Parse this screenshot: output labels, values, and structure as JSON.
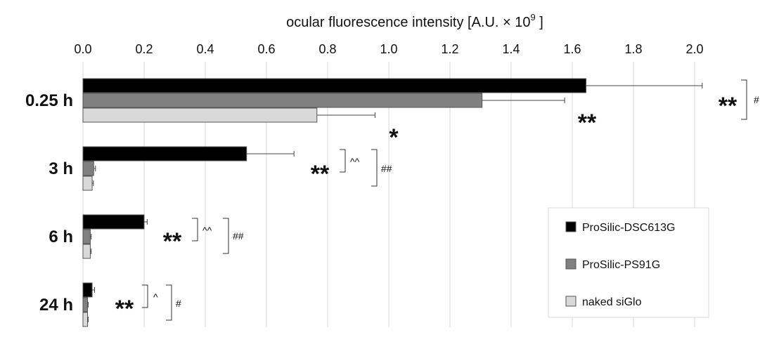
{
  "chart_data": {
    "type": "bar",
    "orientation": "horizontal",
    "xlabel": "ocular fluorescence intensity [A.U. × 10",
    "xlabel_sup": "9",
    "xlabel_end": " ]",
    "xlim": [
      0,
      2.0
    ],
    "xticks": [
      "0.0",
      "0.2",
      "0.4",
      "0.6",
      "0.8",
      "1.0",
      "1.2",
      "1.4",
      "1.6",
      "1.8",
      "2.0"
    ],
    "grid": true,
    "legend_position": "bottom-right",
    "categories": [
      "0.25 h",
      "3 h",
      "6 h",
      "24 h"
    ],
    "series": [
      {
        "name": "ProSilic-DSC613G",
        "color": "#000000",
        "values": [
          1.645,
          0.535,
          0.2,
          0.03
        ],
        "errors": [
          0.38,
          0.155,
          0.01,
          0.008
        ]
      },
      {
        "name": "ProSilic-PS91G",
        "color": "#808080",
        "values": [
          1.305,
          0.035,
          0.024,
          0.015
        ],
        "errors": [
          0.27,
          0.006,
          0.003,
          0.002
        ]
      },
      {
        "name": "naked siGlo",
        "color": "#d9d9d9",
        "values": [
          0.765,
          0.03,
          0.024,
          0.015
        ],
        "errors": [
          0.19,
          0.004,
          0.003,
          0.002
        ]
      }
    ],
    "annotations": {
      "stars": [
        {
          "category": 0,
          "series": 0,
          "text": "**"
        },
        {
          "category": 0,
          "series": 1,
          "text": "**"
        },
        {
          "category": 0,
          "series": 2,
          "text": "*"
        },
        {
          "category": 1,
          "series": 0,
          "text": "**"
        },
        {
          "category": 2,
          "series": 0,
          "text": "**"
        },
        {
          "category": 3,
          "series": 0,
          "text": "**"
        }
      ],
      "brackets": [
        {
          "category": 0,
          "text": "#"
        },
        {
          "category": 1,
          "text": "^^"
        },
        {
          "category": 1,
          "text": "##"
        },
        {
          "category": 2,
          "text": "^^"
        },
        {
          "category": 2,
          "text": "##"
        },
        {
          "category": 3,
          "text": "^"
        },
        {
          "category": 3,
          "text": "#"
        }
      ]
    }
  }
}
